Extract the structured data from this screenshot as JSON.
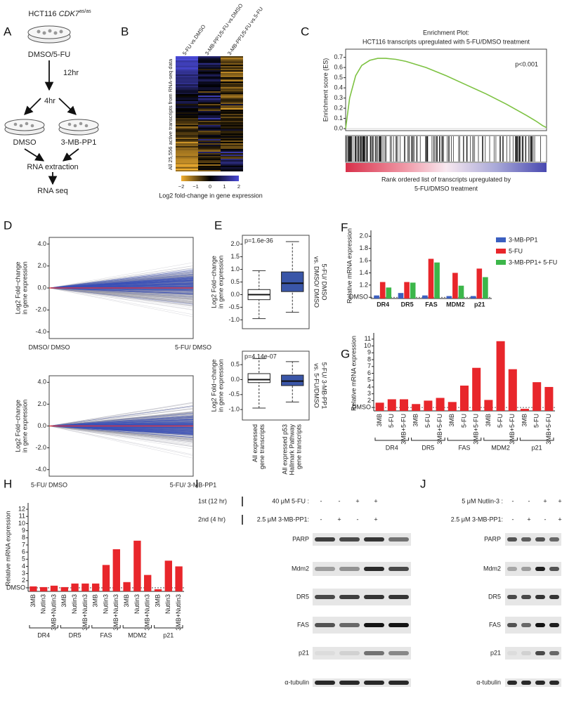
{
  "panel_labels": [
    "A",
    "B",
    "C",
    "D",
    "E",
    "F",
    "G",
    "H",
    "I",
    "J"
  ],
  "panel_a": {
    "cell_line": "HCT116",
    "genotype": "CDK7",
    "genotype_sup": "as/as",
    "start": "DMSO/5-FU",
    "time1": "12hr",
    "time2": "4hr",
    "arm1": "DMSO",
    "arm2": "3-MB-PP1",
    "step1": "RNA extraction",
    "step2": "RNA seq"
  },
  "panel_b": {
    "columns": [
      "5-FU vs.DMSO",
      "3-MB-PP1/5-FU vs.DMSO",
      "3-MB-PP1/5-FU vs.5-FU"
    ],
    "row_label": "All 25,556 active transcripts from RNA-seq data",
    "colorbar_ticks": [
      "−2",
      "−1",
      "0",
      "1",
      "2"
    ],
    "colorbar_label": "Log2 fold-change in gene expression"
  },
  "panel_i": {
    "row1_label": "1st (12 hr)",
    "row1_treatment": "40 μM 5-FU :",
    "row1_signs": [
      "-",
      "-",
      "+",
      "+"
    ],
    "row2_label": "2nd (4 hr)",
    "row2_treatment": "2.5 μM 3-MB-PP1:",
    "row2_signs": [
      "-",
      "+",
      "-",
      "+"
    ],
    "blots": [
      "PARP",
      "Mdm2",
      "DR5",
      "FAS",
      "p21",
      "α-tubulin"
    ]
  },
  "panel_j": {
    "row1_treatment": "5 μM Nutlin-3 :",
    "row1_signs": [
      "-",
      "-",
      "+",
      "+"
    ],
    "row2_treatment": "2.5 μM 3-MB-PP1:",
    "row2_signs": [
      "-",
      "+",
      "-",
      "+"
    ],
    "blots": [
      "PARP",
      "Mdm2",
      "DR5",
      "FAS",
      "p21",
      "α-tubulin"
    ]
  },
  "chart_data": [
    {
      "type": "line",
      "title": "Enrichment Plot:",
      "subtitle": "HCT116 transcripts upregulated with 5-FU/DMSO treatment",
      "y_label": "Enrichment score (ES)",
      "x_label": [
        "Rank ordered list of transcripts upregulated by",
        "5-FU/DMSO treatment"
      ],
      "annotation": "p<0.001",
      "x": [
        0,
        2,
        5,
        8,
        12,
        16,
        20,
        25,
        30,
        40,
        50,
        60,
        70,
        80,
        90,
        95,
        98,
        100
      ],
      "values": [
        0,
        0.3,
        0.52,
        0.62,
        0.67,
        0.69,
        0.69,
        0.68,
        0.66,
        0.6,
        0.52,
        0.43,
        0.34,
        0.24,
        0.13,
        0.07,
        0.03,
        0.01
      ],
      "color": "#7dc242",
      "xlim": [
        0,
        100
      ],
      "ylim": [
        -0.02,
        0.78
      ],
      "yticks": [
        {
          "value": 0,
          "label": "0.0"
        },
        0.1,
        0.2,
        0.3,
        0.4,
        0.5,
        0.6,
        0.7
      ]
    },
    {
      "type": "line",
      "categories": [
        "DMSO/ DMSO",
        "5-FU/ DMSO"
      ],
      "y_label": [
        "Log2 Fold−change",
        "in gene expression"
      ],
      "values": [
        0,
        0
      ],
      "color": "#e8343a",
      "ylim": [
        -4.6,
        4.6
      ],
      "yticks": [
        {
          "value": 4,
          "label": "4.0"
        },
        {
          "value": 2,
          "label": "2.0"
        },
        {
          "value": 0,
          "label": "0.0"
        },
        {
          "value": -2,
          "label": "-2.0"
        },
        {
          "value": -4,
          "label": "-4.0"
        }
      ]
    },
    {
      "type": "line",
      "categories": [
        "5-FU/ DMSO",
        "5-FU/ 3-MB-PP1"
      ],
      "y_label": [
        "Log2 Fold−change",
        "in gene expression"
      ],
      "values": [
        0,
        0
      ],
      "color": "#e8343a",
      "ylim": [
        -4.6,
        4.6
      ],
      "yticks": [
        {
          "value": 4,
          "label": "4.0"
        },
        {
          "value": 2,
          "label": "2.0"
        },
        {
          "value": 0,
          "label": "0.0"
        },
        {
          "value": -2,
          "label": "-2.0"
        },
        {
          "value": -4,
          "label": "-4.0"
        }
      ]
    },
    {
      "type": "box",
      "annotation": "p=1.6e-36",
      "y_label": [
        "Log2 Fold−change",
        "in gene expression"
      ],
      "right_label": [
        "5-FU/ DMSO",
        "vs. DMSO/ DMSO"
      ],
      "boxes": [
        {
          "whislo": -0.95,
          "q1": -0.2,
          "med": 0,
          "q3": 0.2,
          "whishi": 0.95,
          "color": "#ffffff"
        },
        {
          "whislo": -0.7,
          "q1": 0.12,
          "med": 0.45,
          "q3": 0.9,
          "whishi": 2.1,
          "color": "#3a56a8"
        }
      ],
      "ylim": [
        -1.35,
        2.35
      ],
      "yticks": [
        {
          "value": -1,
          "label": "-1.0"
        },
        -0.5,
        {
          "value": 0,
          "label": "0.0"
        },
        0.5,
        {
          "value": 1,
          "label": "1.0"
        },
        1.5,
        {
          "value": 2,
          "label": "2.0"
        }
      ]
    },
    {
      "type": "box",
      "annotation": "p=4.14e-07",
      "y_label": [
        "Log2 Fold−change",
        "in gene expression"
      ],
      "right_label": [
        "5-FU/ 3-MB-PP1",
        "vs. 5-FU/DMSO"
      ],
      "categories": [
        [
          "All expressed",
          "gene transcripts"
        ],
        [
          "All expressed p53",
          "Hallmark Pathway",
          "gene transcripts"
        ]
      ],
      "boxes": [
        {
          "whislo": -0.95,
          "q1": -0.1,
          "med": 0,
          "q3": 0.2,
          "whishi": 0.7,
          "color": "#ffffff"
        },
        {
          "whislo": -0.75,
          "q1": -0.2,
          "med": -0.05,
          "q3": 0.15,
          "whishi": 0.6,
          "color": "#3a56a8"
        }
      ],
      "ylim": [
        -1.35,
        0.95
      ],
      "yticks": [
        {
          "value": -1,
          "label": "-1.0"
        },
        -0.5,
        {
          "value": 0,
          "label": "0.0"
        },
        0.5
      ]
    },
    {
      "type": "bar",
      "y_label": "Relative mRNA expression",
      "categories": [
        "DR4",
        "DR5",
        "FAS",
        "MDM2",
        "p21"
      ],
      "series": [
        {
          "name": "3-MB-PP1",
          "color": "#3b5fc0",
          "values": [
            1.03,
            1.07,
            1.03,
            1.02,
            1.02
          ]
        },
        {
          "name": "5-FU",
          "color": "#e8262b",
          "values": [
            1.25,
            1.25,
            1.63,
            1.4,
            1.47
          ]
        },
        {
          "name": "3-MB-PP1+ 5-FU",
          "color": "#3cb64a",
          "values": [
            1.16,
            1.24,
            1.57,
            1.19,
            1.33
          ]
        }
      ],
      "ylim": [
        0.98,
        2.05
      ],
      "yticks": [
        {
          "value": 1,
          "label": "DMSO"
        },
        1.2,
        1.4,
        1.6,
        1.8,
        {
          "value": 2,
          "label": "2.0"
        }
      ]
    },
    {
      "type": "bar",
      "y_label": "Relative mRNA expression",
      "categories": [
        "3MB",
        "5-FU",
        "3MB+5-FU",
        "3MB",
        "5-FU",
        "3MB+5-FU",
        "3MB",
        "5-FU",
        "3MB+5-FU",
        "3MB",
        "5-FU",
        "3MB+5-FU",
        "3MB",
        "5-FU",
        "3MB+5-FU"
      ],
      "groups": [
        "DR4",
        "DR5",
        "FAS",
        "MDM2",
        "p21"
      ],
      "values": [
        1.7,
        2.2,
        2.2,
        1.5,
        2.0,
        2.4,
        1.8,
        4.2,
        6.8,
        2.1,
        10.7,
        6.6,
        0.8,
        4.7,
        4.0
      ],
      "color": "#e8262b",
      "ylim": [
        0.5,
        11.5
      ],
      "yticks": [
        {
          "value": 1,
          "label": "DMSO"
        },
        2,
        3,
        4,
        5,
        6,
        7,
        8,
        9,
        10,
        11
      ]
    },
    {
      "type": "bar",
      "y_label": "Relative mRNA expression",
      "categories": [
        "3MB",
        "Nutlin3",
        "3MB+Nutlin3",
        "3MB",
        "Nutlin3",
        "3MB+Nutlin3",
        "3MB",
        "Nutlin3",
        "3MB+Nutlin3",
        "3MB",
        "Nutlin3",
        "3MB+Nutlin3",
        "3MB",
        "Nutlin3",
        "3MB+Nutlin3"
      ],
      "groups": [
        "DR4",
        "DR5",
        "FAS",
        "MDM2",
        "p21"
      ],
      "values": [
        1.2,
        1.1,
        1.3,
        1.1,
        1.6,
        1.6,
        1.6,
        4.2,
        6.4,
        1.8,
        7.6,
        2.8,
        0.8,
        4.8,
        4.0
      ],
      "color": "#e8262b",
      "ylim": [
        0.5,
        12.5
      ],
      "yticks": [
        {
          "value": 1,
          "label": "DMSO"
        },
        2,
        3,
        4,
        5,
        6,
        7,
        8,
        9,
        10,
        11,
        12
      ]
    }
  ]
}
